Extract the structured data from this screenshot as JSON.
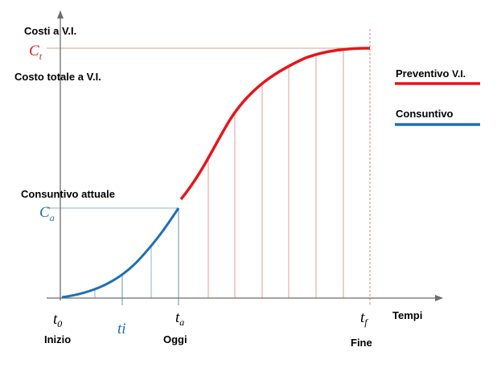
{
  "labels": {
    "y_axis_title": "Costi a V.I.",
    "ct": "C",
    "ct_sub": "t",
    "costo_totale": "Costo totale a V.I.",
    "consuntivo_attuale": "Consuntivo attuale",
    "ca": "C",
    "ca_sub": "a",
    "t0": "t",
    "t0_sub": "0",
    "ti": "ti",
    "ta": "t",
    "ta_sub": "a",
    "tf": "t",
    "tf_sub": "f",
    "x_axis_title": "Tempi",
    "inizio": "Inizio",
    "oggi": "Oggi",
    "fine": "Fine"
  },
  "legend": {
    "preventivo_label": "Preventivo",
    "preventivo_suffix": "V.I.",
    "consuntivo_label": "Consuntivo"
  },
  "colors": {
    "preventivo": "#e8141c",
    "consuntivo": "#1f6fb4",
    "ct_label": "#d42020",
    "ca_label": "#1f6fb4",
    "ti_label": "#1f6fb4",
    "grid_red": "#e39a9a",
    "grid_blue": "#8fb0cc",
    "ct_line": "#d0a090",
    "axis": "#6e6e6e"
  }
}
